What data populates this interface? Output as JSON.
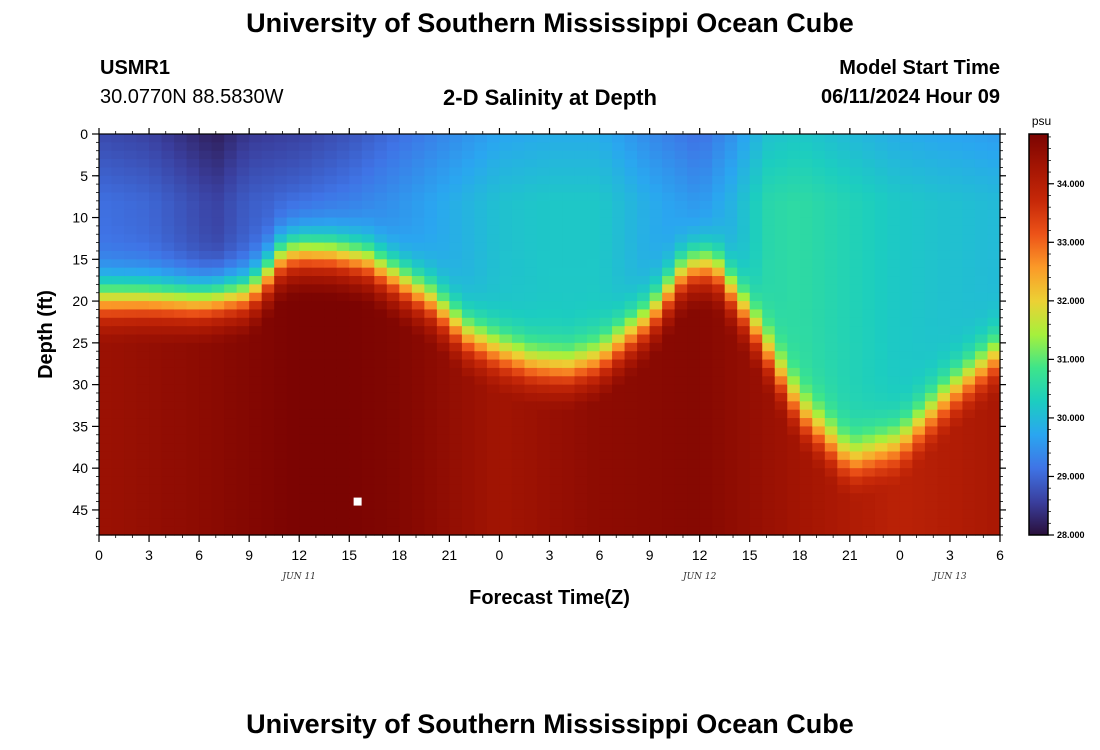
{
  "header": {
    "title": "University of Southern Mississippi Ocean Cube",
    "station_id": "USMR1",
    "coords": "30.0770N  88.5830W",
    "subtitle": "2-D Salinity at Depth",
    "model_start_label": "Model Start Time",
    "model_start_value": "06/11/2024 Hour 09"
  },
  "footer": {
    "title": "University of Southern Mississippi Ocean Cube"
  },
  "chart_data": {
    "type": "heatmap",
    "title": "2-D Salinity at Depth",
    "xlabel": "Forecast Time(Z)",
    "ylabel": "Depth (ft)",
    "x_start_hour": 0,
    "x_end_hour": 54,
    "xlim": [
      0,
      54
    ],
    "ylim": [
      48,
      0
    ],
    "x_tick_labels": [
      "0",
      "3",
      "6",
      "9",
      "12",
      "15",
      "18",
      "21",
      "0",
      "3",
      "6",
      "9",
      "12",
      "15",
      "18",
      "21",
      "0",
      "3",
      "6"
    ],
    "y_ticks": [
      0,
      5,
      10,
      15,
      20,
      25,
      30,
      35,
      40,
      45
    ],
    "date_labels": [
      {
        "label": "JUN 11",
        "hour": 12
      },
      {
        "label": "JUN 12",
        "hour": 36
      },
      {
        "label": "JUN 13",
        "hour": 51
      }
    ],
    "marker": {
      "hour": 15.5,
      "depth": 44,
      "color": "#ffffff"
    },
    "colorbar": {
      "unit": "psu",
      "min": 28.0,
      "max": 34.85,
      "tick_labels": [
        "28.000",
        "29.000",
        "30.000",
        "31.000",
        "32.000",
        "33.000",
        "34.000"
      ],
      "tick_values": [
        28,
        29,
        30,
        31,
        32,
        33,
        34
      ]
    },
    "colors": {
      "colormap": [
        "#2a0f3a",
        "#3a3f9e",
        "#3f74e6",
        "#2aa6f0",
        "#1ccdc0",
        "#3ee58a",
        "#a6f03c",
        "#ecd134",
        "#fb9a28",
        "#ed5318",
        "#c62808",
        "#a41503",
        "#7b0402"
      ]
    },
    "halocline": {
      "hours": [
        0,
        3,
        6,
        9,
        10,
        11,
        12,
        14,
        16,
        18,
        20,
        22,
        24,
        26,
        28,
        30,
        33,
        35,
        36,
        37,
        39,
        42,
        45,
        48,
        51,
        54
      ],
      "depths": [
        19.5,
        19.5,
        19.8,
        19,
        17,
        14.5,
        14,
        14.2,
        15,
        17.5,
        20,
        24,
        26,
        27.5,
        28,
        27,
        22,
        16.5,
        15.5,
        16,
        22,
        33,
        39,
        37,
        31,
        26
      ]
    },
    "surface_fresh": {
      "hours": [
        0,
        3,
        6,
        7,
        9,
        12,
        15,
        18,
        21,
        24,
        27,
        30,
        33,
        36,
        38,
        40,
        42,
        45,
        48,
        51,
        54
      ],
      "values": [
        29.1,
        29.0,
        28.7,
        28.6,
        28.9,
        29.0,
        29.2,
        29.5,
        29.8,
        30.1,
        30.2,
        30.2,
        29.8,
        29.5,
        29.9,
        30.5,
        30.6,
        30.4,
        30.2,
        30.1,
        30.0
      ]
    },
    "bottom_max": {
      "hours": [
        0,
        6,
        12,
        15,
        18,
        24,
        30,
        36,
        42,
        48,
        54
      ],
      "values": [
        34.4,
        34.6,
        34.85,
        34.85,
        34.75,
        34.3,
        34.6,
        34.7,
        34.3,
        33.9,
        34.2
      ]
    }
  }
}
